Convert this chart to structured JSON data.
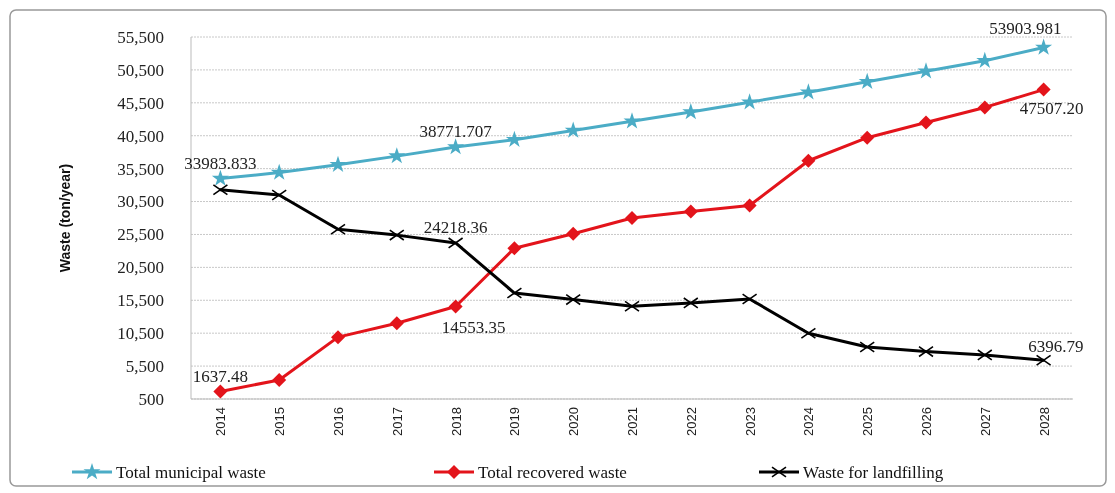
{
  "chart_data": {
    "type": "line",
    "ylabel": "Waste (ton/year)",
    "categories": [
      "2014",
      "2015",
      "2016",
      "2017",
      "2018",
      "2019",
      "2020",
      "2021",
      "2022",
      "2023",
      "2024",
      "2025",
      "2026",
      "2027",
      "2028"
    ],
    "series": [
      {
        "name": "Total municipal waste",
        "color": "#4bacc6",
        "marker": "star",
        "values": [
          33983.833,
          34900,
          36100,
          37400,
          38771.707,
          39900,
          41300,
          42700,
          44100,
          45600,
          47100,
          48700,
          50300,
          51900,
          53903.981
        ],
        "value_labels": [
          "33983.833",
          null,
          null,
          null,
          "38771.707",
          null,
          null,
          null,
          null,
          null,
          null,
          null,
          null,
          null,
          "53903.981"
        ]
      },
      {
        "name": "Total recovered waste",
        "color": "#e3141b",
        "marker": "diamond",
        "values": [
          1637.48,
          3400,
          9900,
          12000,
          14553.35,
          23400,
          25600,
          28000,
          29000,
          29900,
          36700,
          40200,
          42500,
          44800,
          47507.2
        ],
        "value_labels": [
          "1637.48",
          null,
          null,
          null,
          "14553.35",
          null,
          null,
          null,
          null,
          null,
          null,
          null,
          null,
          null,
          "47507.20"
        ]
      },
      {
        "name": "Waste for landfilling",
        "color": "#000000",
        "marker": "cross",
        "values": [
          32300,
          31500,
          26300,
          25400,
          24218.36,
          16600,
          15600,
          14600,
          15100,
          15700,
          10500,
          8400,
          7700,
          7200,
          6396.79
        ],
        "value_labels": [
          null,
          null,
          null,
          null,
          "24218.36",
          null,
          null,
          null,
          null,
          null,
          null,
          null,
          null,
          null,
          "6396.79"
        ]
      }
    ],
    "ylim": [
      500,
      55500
    ],
    "yticks": [
      {
        "value": 500,
        "label": "500"
      },
      {
        "value": 5500,
        "label": "5,500"
      },
      {
        "value": 10500,
        "label": "10,500"
      },
      {
        "value": 15500,
        "label": "15,500"
      },
      {
        "value": 20500,
        "label": "20,500"
      },
      {
        "value": 25500,
        "label": "25,500"
      },
      {
        "value": 30500,
        "label": "30,500"
      },
      {
        "value": 35500,
        "label": "35,500"
      },
      {
        "value": 40500,
        "label": "40,500"
      },
      {
        "value": 45500,
        "label": "45,500"
      },
      {
        "value": 50500,
        "label": "50,500"
      },
      {
        "value": 55500,
        "label": "55,500"
      }
    ],
    "grid": "y",
    "legend": "bottom",
    "line_style": "solid"
  }
}
